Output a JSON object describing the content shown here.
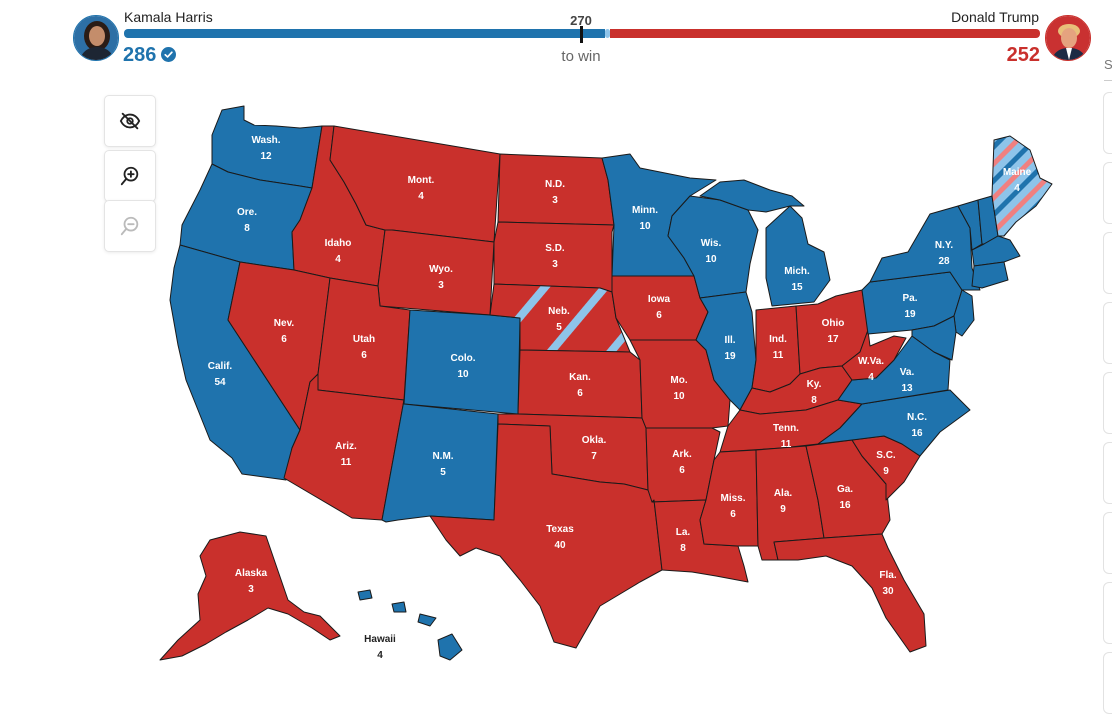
{
  "header": {
    "dem": {
      "name": "Kamala Harris",
      "electoral_votes": "286",
      "projected_winner": true
    },
    "rep": {
      "name": "Donald Trump",
      "electoral_votes": "252"
    },
    "threshold": "270",
    "threshold_label": "to win",
    "side_panel_letter": "S"
  },
  "colors": {
    "dem": "#1f73ad",
    "rep": "#c9302c",
    "split_light_blue": "#8ec4ea",
    "split_light_red": "#f08080",
    "border": "#1a1a1a",
    "background": "#ffffff"
  },
  "controls": [
    {
      "id": "hide",
      "icon": "eye-slash-icon"
    },
    {
      "id": "zoom_in",
      "icon": "zoom-in-icon"
    },
    {
      "id": "zoom_out",
      "icon": "zoom-out-icon",
      "disabled": true
    }
  ],
  "states": [
    {
      "abbr": "Wash.",
      "ev": "12",
      "winner": "dem"
    },
    {
      "abbr": "Ore.",
      "ev": "8",
      "winner": "dem"
    },
    {
      "abbr": "Calif.",
      "ev": "54",
      "winner": "dem"
    },
    {
      "abbr": "Idaho",
      "ev": "4",
      "winner": "rep"
    },
    {
      "abbr": "Nev.",
      "ev": "6",
      "winner": "rep"
    },
    {
      "abbr": "Mont.",
      "ev": "4",
      "winner": "rep"
    },
    {
      "abbr": "Wyo.",
      "ev": "3",
      "winner": "rep"
    },
    {
      "abbr": "Utah",
      "ev": "6",
      "winner": "rep"
    },
    {
      "abbr": "Colo.",
      "ev": "10",
      "winner": "dem"
    },
    {
      "abbr": "Ariz.",
      "ev": "11",
      "winner": "rep"
    },
    {
      "abbr": "N.M.",
      "ev": "5",
      "winner": "dem"
    },
    {
      "abbr": "N.D.",
      "ev": "3",
      "winner": "rep"
    },
    {
      "abbr": "S.D.",
      "ev": "3",
      "winner": "rep"
    },
    {
      "abbr": "Neb.",
      "ev": "5",
      "winner": "rep",
      "split": true
    },
    {
      "abbr": "Kan.",
      "ev": "6",
      "winner": "rep"
    },
    {
      "abbr": "Okla.",
      "ev": "7",
      "winner": "rep"
    },
    {
      "abbr": "Texas",
      "ev": "40",
      "winner": "rep"
    },
    {
      "abbr": "Minn.",
      "ev": "10",
      "winner": "dem"
    },
    {
      "abbr": "Iowa",
      "ev": "6",
      "winner": "rep"
    },
    {
      "abbr": "Mo.",
      "ev": "10",
      "winner": "rep"
    },
    {
      "abbr": "Ark.",
      "ev": "6",
      "winner": "rep"
    },
    {
      "abbr": "La.",
      "ev": "8",
      "winner": "rep"
    },
    {
      "abbr": "Wis.",
      "ev": "10",
      "winner": "dem"
    },
    {
      "abbr": "Ill.",
      "ev": "19",
      "winner": "dem"
    },
    {
      "abbr": "Mich.",
      "ev": "15",
      "winner": "dem"
    },
    {
      "abbr": "Ind.",
      "ev": "11",
      "winner": "rep"
    },
    {
      "abbr": "Ohio",
      "ev": "17",
      "winner": "rep"
    },
    {
      "abbr": "Ky.",
      "ev": "8",
      "winner": "rep"
    },
    {
      "abbr": "Tenn.",
      "ev": "11",
      "winner": "rep"
    },
    {
      "abbr": "Miss.",
      "ev": "6",
      "winner": "rep"
    },
    {
      "abbr": "Ala.",
      "ev": "9",
      "winner": "rep"
    },
    {
      "abbr": "Ga.",
      "ev": "16",
      "winner": "rep"
    },
    {
      "abbr": "Fla.",
      "ev": "30",
      "winner": "rep"
    },
    {
      "abbr": "S.C.",
      "ev": "9",
      "winner": "rep"
    },
    {
      "abbr": "N.C.",
      "ev": "16",
      "winner": "dem"
    },
    {
      "abbr": "Va.",
      "ev": "13",
      "winner": "dem"
    },
    {
      "abbr": "W.Va.",
      "ev": "4",
      "winner": "rep"
    },
    {
      "abbr": "Pa.",
      "ev": "19",
      "winner": "dem"
    },
    {
      "abbr": "N.Y.",
      "ev": "28",
      "winner": "dem"
    },
    {
      "abbr": "Maine",
      "ev": "4",
      "winner": "dem",
      "split": true
    },
    {
      "abbr": "Alaska",
      "ev": "3",
      "winner": "rep"
    },
    {
      "abbr": "Hawaii",
      "ev": "4",
      "winner": "dem"
    }
  ],
  "unlabeled_states": {
    "dem": [
      "Vt.",
      "N.H.",
      "Mass.",
      "Conn.",
      "R.I.",
      "N.J.",
      "Del.",
      "Md.",
      "D.C."
    ]
  }
}
